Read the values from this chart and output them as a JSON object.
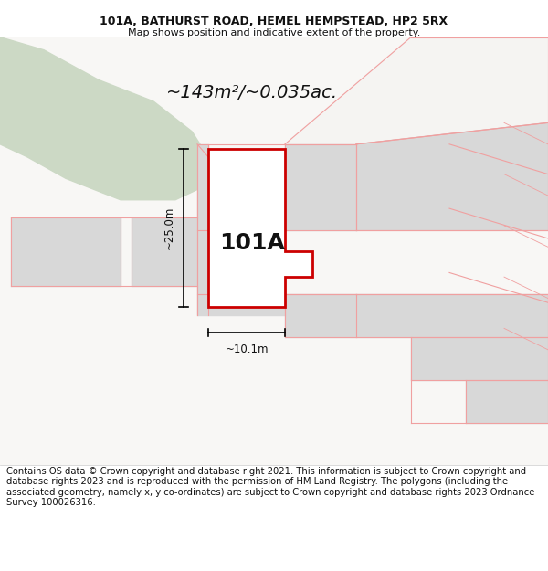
{
  "title_line1": "101A, BATHURST ROAD, HEMEL HEMPSTEAD, HP2 5RX",
  "title_line2": "Map shows position and indicative extent of the property.",
  "area_text": "~143m²/~0.035ac.",
  "label_101A": "101A",
  "dim_vertical": "~25.0m",
  "dim_horizontal": "~10.1m",
  "footer_text": "Contains OS data © Crown copyright and database right 2021. This information is subject to Crown copyright and database rights 2023 and is reproduced with the permission of HM Land Registry. The polygons (including the associated geometry, namely x, y co-ordinates) are subject to Crown copyright and database rights 2023 Ordnance Survey 100026316.",
  "bg_color": "#ffffff",
  "map_bg": "#f0efed",
  "green_color": "#ccd9c5",
  "faint_line": "#f0a0a0",
  "red_outline": "#cc0000",
  "gray_fill": "#d8d8d8",
  "white_fill": "#ffffff",
  "title_fontsize": 9,
  "subtitle_fontsize": 8,
  "footer_fontsize": 7.2,
  "area_fontsize": 14,
  "label_fontsize": 18,
  "dim_fontsize": 8.5
}
